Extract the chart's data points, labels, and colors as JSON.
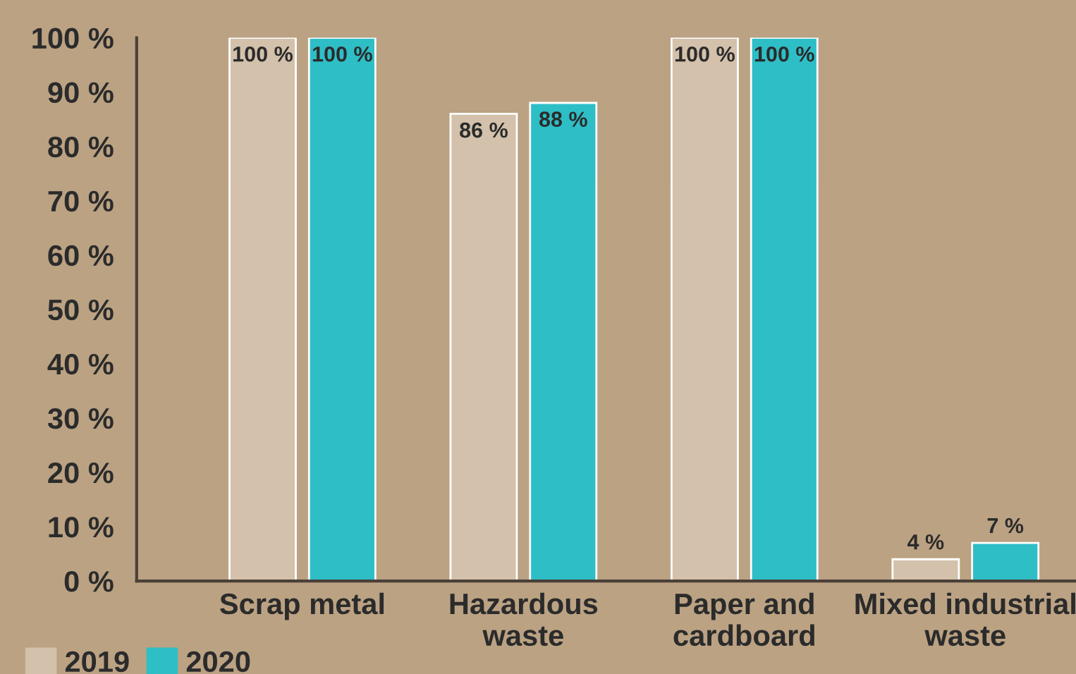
{
  "chart_data": {
    "type": "bar",
    "categories": [
      "Scrap metal",
      "Hazardous\nwaste",
      "Paper and\ncardboard",
      "Mixed industrial\nwaste"
    ],
    "series": [
      {
        "name": "2019",
        "color": "#d3c1ab",
        "values": [
          100,
          86,
          100,
          4
        ],
        "value_labels": [
          "100 %",
          "86 %",
          "100 %",
          "4 %"
        ]
      },
      {
        "name": "2020",
        "color": "#2ebec6",
        "values": [
          100,
          88,
          100,
          7
        ],
        "value_labels": [
          "100 %",
          "88 %",
          "100 %",
          "7 %"
        ]
      }
    ],
    "ylim": [
      0,
      100
    ],
    "yticks": [
      {
        "value": 0,
        "label": "0 %"
      },
      {
        "value": 10,
        "label": "10 %"
      },
      {
        "value": 20,
        "label": "20 %"
      },
      {
        "value": 30,
        "label": "30 %"
      },
      {
        "value": 40,
        "label": "40 %"
      },
      {
        "value": 50,
        "label": "50 %"
      },
      {
        "value": 60,
        "label": "60 %"
      },
      {
        "value": 70,
        "label": "70 %"
      },
      {
        "value": 80,
        "label": "80 %"
      },
      {
        "value": 90,
        "label": "90 %"
      },
      {
        "value": 100,
        "label": "100 %"
      }
    ],
    "grid": false,
    "legend": "bottom left"
  }
}
